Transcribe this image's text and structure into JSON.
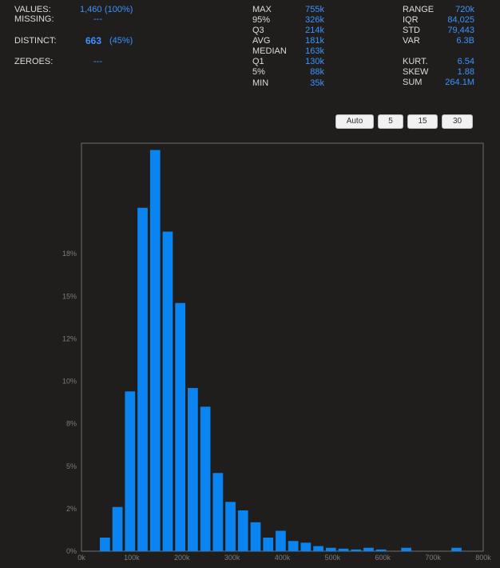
{
  "summary_left": [
    {
      "label": "VALUES:",
      "value": "1,460",
      "extra": "(100%)"
    },
    {
      "label": "MISSING:",
      "value": "---"
    },
    {
      "label": "DISTINCT:",
      "value": "663",
      "extra": "(45%)"
    },
    {
      "label": "ZEROES:",
      "value": "---"
    }
  ],
  "quantiles": [
    {
      "label": "MAX",
      "value": "755k"
    },
    {
      "label": "95%",
      "value": "326k"
    },
    {
      "label": "Q3",
      "value": "214k"
    },
    {
      "label": "AVG",
      "value": "181k"
    },
    {
      "label": "MEDIAN",
      "value": "163k"
    },
    {
      "label": "Q1",
      "value": "130k"
    },
    {
      "label": "5%",
      "value": "88k"
    },
    {
      "label": "MIN",
      "value": "35k"
    }
  ],
  "moments": [
    {
      "label": "RANGE",
      "value": "720k"
    },
    {
      "label": "IQR",
      "value": "84,025"
    },
    {
      "label": "STD",
      "value": "79,443"
    },
    {
      "label": "VAR",
      "value": "6.3B"
    },
    {
      "label": "KURT.",
      "value": "6.54"
    },
    {
      "label": "SKEW",
      "value": "1.88"
    },
    {
      "label": "SUM",
      "value": "264.1M"
    }
  ],
  "bin_buttons": [
    "Auto",
    "5",
    "15",
    "30"
  ],
  "colors": {
    "bar": "#0a84f0",
    "accent": "#3b93ff",
    "background": "#1f1e1d",
    "axis": "#6e6e6e"
  },
  "chart_data": {
    "type": "bar",
    "x_bin_starts": [
      35000,
      60000,
      85000,
      110000,
      135000,
      160000,
      185000,
      210000,
      235000,
      260000,
      285000,
      310000,
      335000,
      360000,
      385000,
      410000,
      435000,
      460000,
      485000,
      510000,
      535000,
      560000,
      585000,
      610000,
      635000,
      660000,
      685000,
      710000,
      735000
    ],
    "bin_width": 25000,
    "values": [
      0.8,
      2.6,
      9.4,
      20.2,
      23.6,
      18.8,
      14.6,
      9.6,
      8.5,
      4.6,
      2.9,
      2.4,
      1.7,
      0.8,
      1.2,
      0.6,
      0.5,
      0.3,
      0.2,
      0.15,
      0.1,
      0.2,
      0.1,
      0,
      0.2,
      0,
      0,
      0,
      0.2
    ],
    "xlim": [
      0,
      800000
    ],
    "ylim": [
      0,
      24
    ],
    "yticks": [
      0,
      2.5,
      5,
      7.5,
      10,
      12.5,
      15,
      17.5
    ],
    "ytick_labels": [
      "0%",
      "2%",
      "5%",
      "8%",
      "10%",
      "12%",
      "15%",
      "18%"
    ],
    "xticks": [
      0,
      100000,
      200000,
      300000,
      400000,
      500000,
      600000,
      700000,
      800000
    ],
    "xtick_labels": [
      "0k",
      "100k",
      "200k",
      "300k",
      "400k",
      "500k",
      "600k",
      "700k",
      "800k"
    ],
    "grid": false
  }
}
